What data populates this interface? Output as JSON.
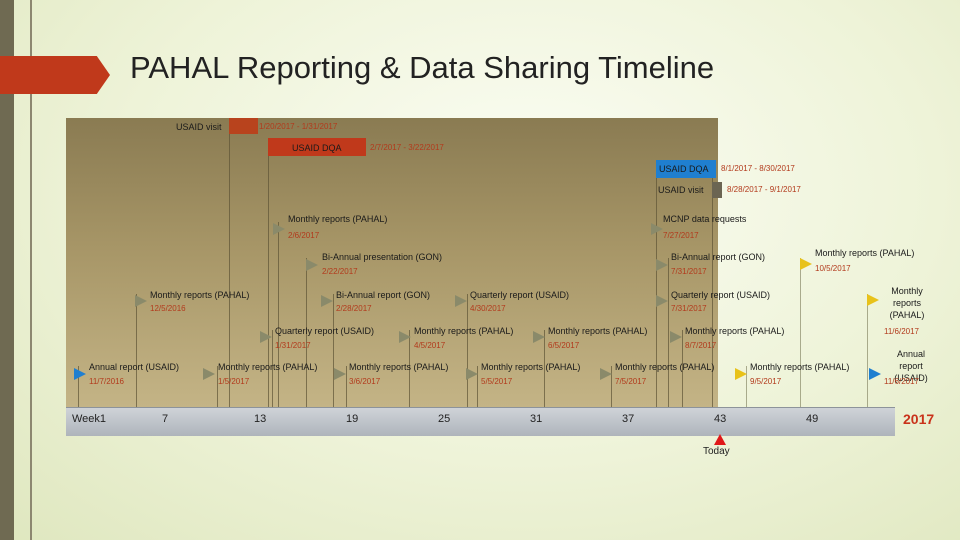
{
  "title": "PAHAL Reporting & Data Sharing Timeline",
  "year": "2017",
  "today": "Today",
  "weeks": [
    "Week1",
    "7",
    "13",
    "19",
    "25",
    "31",
    "37",
    "43",
    "49"
  ],
  "bars": [
    {
      "label": "USAID visit",
      "date": "1/20/2017 - 1/31/2017",
      "color": "#b8431d"
    },
    {
      "label": "USAID DQA",
      "date": "2/7/2017 - 3/22/2017",
      "color": "#c0391b"
    },
    {
      "label": "USAID DQA",
      "date": "8/1/2017 - 8/30/2017",
      "color": "#1f7fd0"
    },
    {
      "label": "USAID visit",
      "date": "8/28/2017 - 9/1/2017",
      "color": "#6b6552"
    }
  ],
  "milestones": [
    {
      "label": "Monthly reports (PAHAL)",
      "date": "2/6/2017"
    },
    {
      "label": "MCNP data requests",
      "date": "7/27/2017"
    },
    {
      "label": "Bi-Annual presentation (GON)",
      "date": "2/22/2017"
    },
    {
      "label": "Bi-Annual report (GON)",
      "date": "7/31/2017"
    },
    {
      "label": "Monthly reports (PAHAL)",
      "date": "10/5/2017"
    },
    {
      "label": "Monthly reports (PAHAL)",
      "date": "12/5/2016"
    },
    {
      "label": "Bi-Annual report (GON)",
      "date": "2/28/2017"
    },
    {
      "label": "Quarterly report (USAID)",
      "date": "4/30/2017"
    },
    {
      "label": "Quarterly report (USAID)",
      "date": "7/31/2017"
    },
    {
      "label": "Monthly reports (PAHAL)",
      "date": "11/6/2017"
    },
    {
      "label": "Quarterly report (USAID)",
      "date": "1/31/2017"
    },
    {
      "label": "Monthly reports (PAHAL)",
      "date": "4/5/2017"
    },
    {
      "label": "Monthly reports (PAHAL)",
      "date": "6/5/2017"
    },
    {
      "label": "Monthly reports (PAHAL)",
      "date": "8/7/2017"
    },
    {
      "label": "Annual report (USAID)",
      "date": "11/7/2016"
    },
    {
      "label": "Monthly reports (PAHAL)",
      "date": "1/5/2017"
    },
    {
      "label": "Monthly reports (PAHAL)",
      "date": "3/6/2017"
    },
    {
      "label": "Monthly reports (PAHAL)",
      "date": "5/5/2017"
    },
    {
      "label": "Monthly reports (PAHAL)",
      "date": "7/5/2017"
    },
    {
      "label": "Monthly reports (PAHAL)",
      "date": "9/5/2017"
    },
    {
      "label": "Annual report (USAID)",
      "date": "11/6/2017"
    }
  ]
}
